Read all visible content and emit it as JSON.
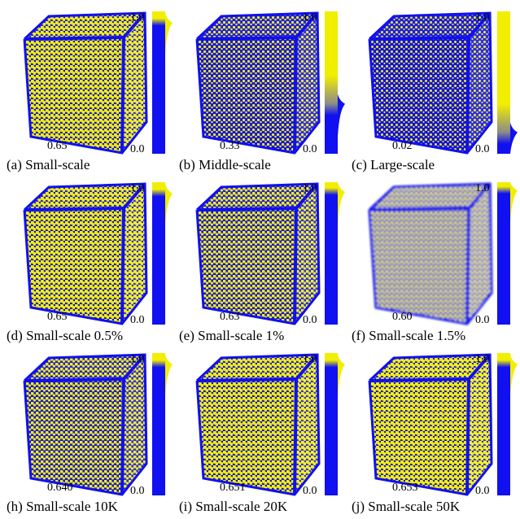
{
  "figure": {
    "colormap": {
      "low_color": "#1010f0",
      "high_color": "#f2ee00",
      "mid_color": "#8a8a8a"
    },
    "tick_max": "1.0",
    "tick_min": "0.0",
    "panels": [
      {
        "caption": "(a) Small-scale",
        "value": "0.65",
        "high_fraction": 0.92,
        "coverage": 0.78,
        "blur": false,
        "cube_color": "#c9c42a"
      },
      {
        "caption": "(b) Middle-scale",
        "value": "0.33",
        "high_fraction": 0.35,
        "coverage": 0.3,
        "blur": false,
        "cube_color": "#3c3fa8"
      },
      {
        "caption": "(c) Large-scale",
        "value": "0.02",
        "high_fraction": 0.15,
        "coverage": 0.18,
        "blur": false,
        "cube_color": "#3a3e96"
      },
      {
        "caption": "(d) Small-scale 0.5%",
        "value": "0.65",
        "high_fraction": 0.92,
        "coverage": 0.8,
        "blur": false,
        "cube_color": "#c8c32b"
      },
      {
        "caption": "(e) Small-scale 1%",
        "value": "0.63",
        "high_fraction": 0.93,
        "coverage": 0.55,
        "blur": false,
        "cube_color": "#7f7d6a"
      },
      {
        "caption": "(f) Small-scale 1.5%",
        "value": "0.60",
        "high_fraction": 0.94,
        "coverage": 0.5,
        "blur": true,
        "cube_color": "#7b7a78"
      },
      {
        "caption": "(h) Small-scale 10K",
        "value": "0.640",
        "high_fraction": 0.92,
        "coverage": 0.55,
        "blur": false,
        "cube_color": "#8a874e"
      },
      {
        "caption": "(i) Small-scale 20K",
        "value": "0.651",
        "high_fraction": 0.92,
        "coverage": 0.78,
        "blur": false,
        "cube_color": "#bfbb2c"
      },
      {
        "caption": "(j) Small-scale 50K",
        "value": "0.653",
        "high_fraction": 0.92,
        "coverage": 0.86,
        "blur": false,
        "cube_color": "#cbc62c"
      }
    ]
  }
}
